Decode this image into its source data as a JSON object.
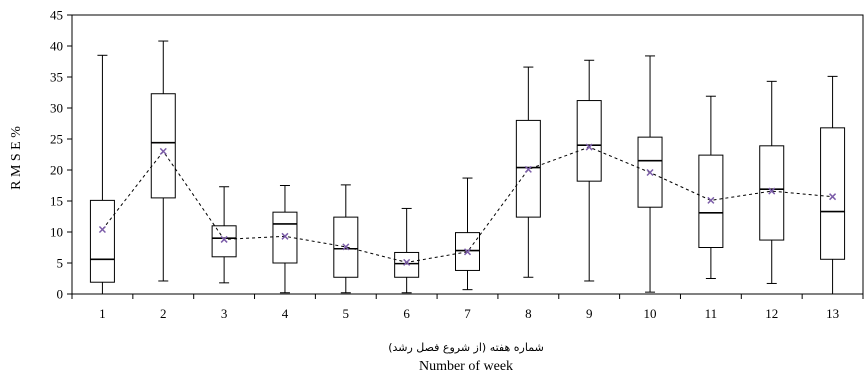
{
  "chart_data": {
    "type": "box",
    "title": "",
    "xlabel_fa": "شماره هفته (از شروع فصل رشد)",
    "xlabel": "Number of week",
    "ylabel": "R M S E  %",
    "ylim": [
      0,
      45
    ],
    "yticks": [
      0,
      5,
      10,
      15,
      20,
      25,
      30,
      35,
      40,
      45
    ],
    "categories": [
      "1",
      "2",
      "3",
      "4",
      "5",
      "6",
      "7",
      "8",
      "9",
      "10",
      "11",
      "12",
      "13"
    ],
    "boxes": [
      {
        "min": 0.0,
        "q1": 1.9,
        "median": 5.6,
        "q3": 15.1,
        "max": 38.5,
        "mean": 10.4
      },
      {
        "min": 2.1,
        "q1": 15.5,
        "median": 24.4,
        "q3": 32.3,
        "max": 40.8,
        "mean": 23.0
      },
      {
        "min": 1.8,
        "q1": 6.0,
        "median": 9.0,
        "q3": 11.0,
        "max": 17.3,
        "mean": 8.8
      },
      {
        "min": 0.2,
        "q1": 5.0,
        "median": 11.3,
        "q3": 13.2,
        "max": 17.5,
        "mean": 9.3
      },
      {
        "min": 0.2,
        "q1": 2.7,
        "median": 7.3,
        "q3": 12.4,
        "max": 17.6,
        "mean": 7.6
      },
      {
        "min": 0.2,
        "q1": 2.7,
        "median": 4.9,
        "q3": 6.7,
        "max": 13.8,
        "mean": 5.1
      },
      {
        "min": 0.7,
        "q1": 3.8,
        "median": 7.0,
        "q3": 9.9,
        "max": 18.7,
        "mean": 6.8
      },
      {
        "min": 2.7,
        "q1": 12.4,
        "median": 20.4,
        "q3": 28.0,
        "max": 36.6,
        "mean": 20.1
      },
      {
        "min": 2.1,
        "q1": 18.2,
        "median": 24.0,
        "q3": 31.2,
        "max": 37.7,
        "mean": 23.7
      },
      {
        "min": 0.3,
        "q1": 14.0,
        "median": 21.5,
        "q3": 25.3,
        "max": 38.4,
        "mean": 19.6
      },
      {
        "min": 2.5,
        "q1": 7.5,
        "median": 13.1,
        "q3": 22.4,
        "max": 31.9,
        "mean": 15.1
      },
      {
        "min": 1.7,
        "q1": 8.7,
        "median": 16.9,
        "q3": 23.9,
        "max": 34.3,
        "mean": 16.6
      },
      {
        "min": 0.0,
        "q1": 5.6,
        "median": 13.3,
        "q3": 26.8,
        "max": 35.1,
        "mean": 15.7
      }
    ],
    "mean_line_style": "dashed",
    "mean_marker": "x",
    "mean_marker_color": "#7b5ca8",
    "grid": false,
    "legend": "none"
  }
}
